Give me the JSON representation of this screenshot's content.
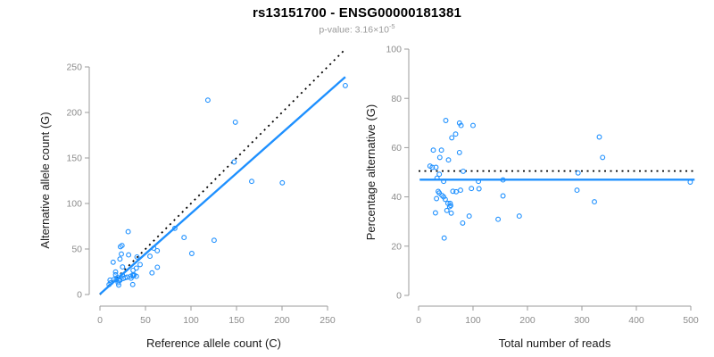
{
  "header": {
    "title": "rs13151700 - ENSG00000181381",
    "subtitle_prefix": "p-value: ",
    "subtitle_base": "3.16×10",
    "subtitle_exponent": "-5"
  },
  "colors": {
    "points": "#1E90FF",
    "fit_line": "#1E90FF",
    "reference_line": "#000000",
    "axis": "#9b9b9b",
    "tick_labels": "#8c8c8c",
    "axis_titles": "#1a1a1a",
    "title": "#000000",
    "subtitle": "#9a9a9a",
    "background": "#FFFFFF"
  },
  "chart_data": [
    {
      "type": "scatter",
      "name": "allele-counts",
      "title": "",
      "xlabel": "Reference allele count (C)",
      "ylabel": "Alternative allele count (G)",
      "xlim": [
        0,
        269.5
      ],
      "ylim": [
        0,
        269.5
      ],
      "xticks": [
        0,
        50,
        100,
        150,
        200,
        250
      ],
      "yticks": [
        0,
        50,
        100,
        150,
        200,
        250
      ],
      "grid": false,
      "legend": "none",
      "points": [
        [
          14.5,
          35.5
        ],
        [
          22.5,
          52.5
        ],
        [
          24.2,
          53.8
        ],
        [
          31,
          69
        ],
        [
          22,
          39
        ],
        [
          23.5,
          44.5
        ],
        [
          118.5,
          213.5
        ],
        [
          11.1,
          15.9
        ],
        [
          17.2,
          24.8
        ],
        [
          31.5,
          43.5
        ],
        [
          17.2,
          21.8
        ],
        [
          148.7,
          189.3
        ],
        [
          24.8,
          30.3
        ],
        [
          10,
          11
        ],
        [
          12,
          13
        ],
        [
          15.4,
          16.6
        ],
        [
          40.7,
          41.3
        ],
        [
          147.4,
          145.6
        ],
        [
          19.3,
          18.7
        ],
        [
          17.8,
          16.2
        ],
        [
          24.7,
          21.3
        ],
        [
          59.1,
          50.9
        ],
        [
          82.3,
          72.7
        ],
        [
          269.5,
          229.5
        ],
        [
          20.8,
          15.2
        ],
        [
          22.2,
          15.8
        ],
        [
          36.4,
          26.6
        ],
        [
          40,
          29
        ],
        [
          44.1,
          32.9
        ],
        [
          54.9,
          42.1
        ],
        [
          62.9,
          48.1
        ],
        [
          166.7,
          124.3
        ],
        [
          25.5,
          17.5
        ],
        [
          27.6,
          18.4
        ],
        [
          92.4,
          62.6
        ],
        [
          20,
          13
        ],
        [
          29.9,
          19.1
        ],
        [
          33.8,
          20.2
        ],
        [
          36.3,
          21.7
        ],
        [
          37.5,
          21.5
        ],
        [
          36.5,
          20.5
        ],
        [
          200.3,
          122.7
        ],
        [
          34.1,
          17.9
        ],
        [
          20.6,
          10.4
        ],
        [
          40,
          20
        ],
        [
          63,
          30
        ],
        [
          125.4,
          59.6
        ],
        [
          100.9,
          45.1
        ],
        [
          57.2,
          23.8
        ],
        [
          36,
          11
        ]
      ],
      "lines": [
        {
          "name": "identity-reference-line",
          "style": "dotted",
          "color": "#000000",
          "x1": 0,
          "y1": 0,
          "x2": 269.5,
          "y2": 269.5
        },
        {
          "name": "regression-fit-line",
          "style": "solid",
          "color": "#1E90FF",
          "x1": 0,
          "y1": 0.5,
          "x2": 269.5,
          "y2": 239
        }
      ]
    },
    {
      "type": "scatter",
      "name": "percentage-vs-reads",
      "title": "",
      "xlabel": "Total number of reads",
      "ylabel": "Percentage alternative (G)",
      "xlim": [
        0,
        507
      ],
      "ylim": [
        0,
        100
      ],
      "xticks": [
        0,
        100,
        200,
        300,
        400,
        500
      ],
      "yticks": [
        0,
        20,
        40,
        60,
        80,
        100
      ],
      "grid": false,
      "legend": "none",
      "points": [
        [
          50,
          71
        ],
        [
          75,
          70
        ],
        [
          78,
          69
        ],
        [
          100,
          69
        ],
        [
          61,
          64
        ],
        [
          68,
          65.5
        ],
        [
          332,
          64.3
        ],
        [
          27,
          59
        ],
        [
          42,
          59
        ],
        [
          75,
          58
        ],
        [
          39,
          56
        ],
        [
          338,
          56
        ],
        [
          55,
          55
        ],
        [
          21,
          52.5
        ],
        [
          25,
          52
        ],
        [
          32,
          52
        ],
        [
          82,
          50.4
        ],
        [
          293,
          49.7
        ],
        [
          38,
          49.2
        ],
        [
          34,
          47.6
        ],
        [
          46,
          46.3
        ],
        [
          110,
          46.3
        ],
        [
          155,
          46.9
        ],
        [
          499,
          46
        ],
        [
          36,
          42.2
        ],
        [
          38,
          41.6
        ],
        [
          63,
          42.3
        ],
        [
          69,
          42.1
        ],
        [
          77,
          42.7
        ],
        [
          97,
          43.4
        ],
        [
          111,
          43.3
        ],
        [
          291,
          42.7
        ],
        [
          43,
          40.6
        ],
        [
          46,
          40
        ],
        [
          155,
          40.4
        ],
        [
          33,
          39.3
        ],
        [
          49,
          39
        ],
        [
          54,
          37.4
        ],
        [
          58,
          37.4
        ],
        [
          59,
          36.5
        ],
        [
          57,
          36
        ],
        [
          323,
          38
        ],
        [
          52,
          34.5
        ],
        [
          31,
          33.5
        ],
        [
          60,
          33.4
        ],
        [
          93,
          32.2
        ],
        [
          185,
          32.2
        ],
        [
          146,
          30.9
        ],
        [
          81,
          29.4
        ],
        [
          47,
          23.3
        ]
      ],
      "lines": [
        {
          "name": "expected-50-percent-line",
          "style": "dotted",
          "color": "#000000",
          "x1": 0,
          "y1": 50.5,
          "x2": 507,
          "y2": 50.5
        },
        {
          "name": "mean-percentage-line",
          "style": "solid",
          "color": "#1E90FF",
          "x1": 2,
          "y1": 47,
          "x2": 507,
          "y2": 47
        }
      ]
    }
  ]
}
